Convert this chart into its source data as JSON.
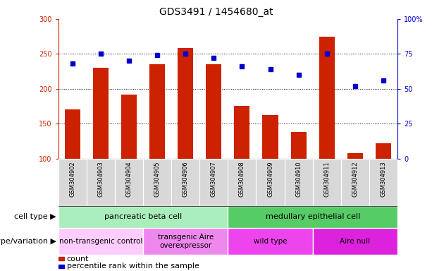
{
  "title": "GDS3491 / 1454680_at",
  "samples": [
    "GSM304902",
    "GSM304903",
    "GSM304904",
    "GSM304905",
    "GSM304906",
    "GSM304907",
    "GSM304908",
    "GSM304909",
    "GSM304910",
    "GSM304911",
    "GSM304912",
    "GSM304913"
  ],
  "counts": [
    170,
    230,
    192,
    235,
    258,
    235,
    175,
    162,
    138,
    275,
    108,
    122
  ],
  "percentile_ranks": [
    68,
    75,
    70,
    74,
    75,
    72,
    66,
    64,
    60,
    75,
    52,
    56
  ],
  "ylim_left": [
    100,
    300
  ],
  "ylim_right": [
    0,
    100
  ],
  "yticks_left": [
    100,
    150,
    200,
    250,
    300
  ],
  "yticks_right": [
    0,
    25,
    50,
    75,
    100
  ],
  "bar_color": "#cc2200",
  "dot_color": "#0000cc",
  "cell_type_groups": [
    {
      "label": "pancreatic beta cell",
      "start": 0,
      "end": 6,
      "color": "#aaeebb"
    },
    {
      "label": "medullary epithelial cell",
      "start": 6,
      "end": 12,
      "color": "#55cc66"
    }
  ],
  "genotype_groups": [
    {
      "label": "non-transgenic control",
      "start": 0,
      "end": 3,
      "color": "#ffccff"
    },
    {
      "label": "transgenic Aire\noverexpressor",
      "start": 3,
      "end": 6,
      "color": "#ee99ee"
    },
    {
      "label": "wild type",
      "start": 6,
      "end": 9,
      "color": "#ee55ee"
    },
    {
      "label": "Aire null",
      "start": 9,
      "end": 12,
      "color": "#dd33dd"
    }
  ],
  "label_cell_type": "cell type",
  "label_genotype": "genotype/variation",
  "tick_label_color_left": "#cc2200",
  "tick_label_color_right": "#0000cc",
  "title_fontsize": 10,
  "tick_fontsize": 7,
  "sample_fontsize": 6,
  "row_label_fontsize": 8,
  "group_label_fontsize": 8,
  "legend_fontsize": 8
}
